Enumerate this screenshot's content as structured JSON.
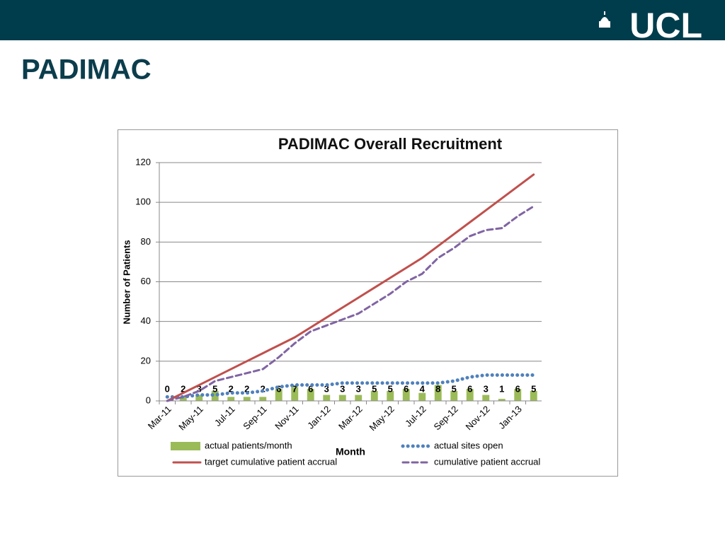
{
  "header": {
    "logo": "UCL"
  },
  "slide_title": "PADIMAC",
  "chart_data": {
    "type": "combo",
    "title": "PADIMAC Overall Recruitment",
    "x_label": "Month",
    "y_label": "Number of Patients",
    "categories": [
      "Mar-11",
      null,
      "May-11",
      null,
      "Jul-11",
      null,
      "Sep-11",
      null,
      "Nov-11",
      null,
      "Jan-12",
      null,
      "Mar-12",
      null,
      "May-12",
      null,
      "Jul-12",
      null,
      "Sep-12",
      null,
      "Nov-12",
      null,
      "Jan-13",
      null
    ],
    "ylim": [
      0,
      120
    ],
    "yticks": [
      0,
      20,
      40,
      60,
      80,
      100,
      120
    ],
    "grid": true,
    "legend": "bottom",
    "series": [
      {
        "name": "actual patients/month",
        "type": "bar",
        "color": "#9bbb59",
        "show_labels": true,
        "values": [
          0,
          2,
          3,
          5,
          2,
          2,
          2,
          6,
          7,
          6,
          3,
          3,
          3,
          5,
          5,
          6,
          4,
          8,
          5,
          6,
          3,
          1,
          6,
          5
        ]
      },
      {
        "name": "actual sites open",
        "type": "line",
        "style": "dotted",
        "color": "#4f81bd",
        "values": [
          2,
          2,
          3,
          3,
          4,
          4,
          5,
          7,
          8,
          8,
          8,
          9,
          9,
          9,
          9,
          9,
          9,
          9,
          10,
          12,
          13,
          13,
          13,
          13
        ]
      },
      {
        "name": "target cumulative patient accrual",
        "type": "line",
        "style": "solid",
        "color": "#c0504d",
        "values": [
          0,
          4,
          8,
          12,
          16,
          20,
          24,
          28,
          32,
          37,
          42,
          47,
          52,
          57,
          62,
          67,
          72,
          78,
          84,
          90,
          96,
          102,
          108,
          114
        ]
      },
      {
        "name": "cumulative patient accrual",
        "type": "line",
        "style": "dashed",
        "color": "#8064a2",
        "values": [
          0,
          2,
          5,
          10,
          12,
          14,
          16,
          22,
          29,
          35,
          38,
          41,
          44,
          49,
          54,
          60,
          64,
          72,
          77,
          83,
          86,
          87,
          93,
          98
        ]
      }
    ]
  }
}
